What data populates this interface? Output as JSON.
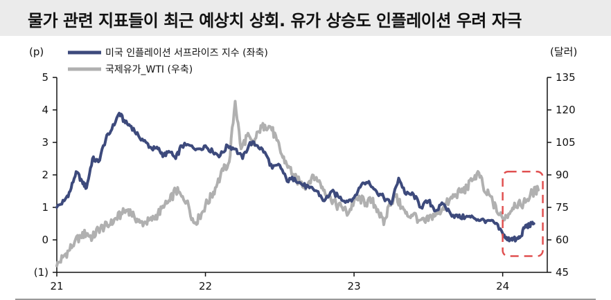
{
  "title": "물가 관련 지표들이 최근 예상치 상회. 유가 상승도 인플레이션 우려 자극",
  "chart_data": {
    "type": "line",
    "title": "물가 관련 지표들이 최근 예상치 상회. 유가 상승도 인플레이션 우려 자극",
    "left_axis": {
      "unit": "(p)",
      "ticks": [
        "5",
        "4",
        "3",
        "2",
        "1",
        "0",
        "(1)"
      ],
      "ylim": [
        -1,
        5
      ]
    },
    "right_axis": {
      "unit": "(달러)",
      "ticks": [
        "135",
        "120",
        "105",
        "90",
        "75",
        "60",
        "45"
      ],
      "ylim": [
        45,
        135
      ]
    },
    "x_ticks": [
      "21",
      "22",
      "23",
      "24"
    ],
    "xlim": [
      2021.0,
      2024.3
    ],
    "highlight": {
      "x_range": [
        2024.0,
        2024.27
      ],
      "y_range_left": [
        -0.5,
        2.1
      ],
      "color": "#e05050",
      "style": "dashed"
    },
    "series": [
      {
        "name": "미국 인플레이션 서프라이즈 지수 (좌축)",
        "axis": "left",
        "color": "#3d4a7c",
        "x": [
          2021.0,
          2021.05,
          2021.09,
          2021.13,
          2021.17,
          2021.2,
          2021.24,
          2021.28,
          2021.33,
          2021.37,
          2021.42,
          2021.46,
          2021.5,
          2021.55,
          2021.6,
          2021.64,
          2021.68,
          2021.72,
          2021.76,
          2021.8,
          2021.84,
          2021.9,
          2021.95,
          2022.0,
          2022.05,
          2022.1,
          2022.15,
          2022.2,
          2022.25,
          2022.3,
          2022.35,
          2022.4,
          2022.45,
          2022.5,
          2022.55,
          2022.6,
          2022.65,
          2022.7,
          2022.75,
          2022.8,
          2022.85,
          2022.9,
          2022.95,
          2023.0,
          2023.05,
          2023.1,
          2023.15,
          2023.2,
          2023.25,
          2023.3,
          2023.35,
          2023.4,
          2023.45,
          2023.5,
          2023.55,
          2023.6,
          2023.65,
          2023.7,
          2023.75,
          2023.8,
          2023.85,
          2023.9,
          2023.95,
          2024.0,
          2024.03,
          2024.06,
          2024.09,
          2024.12,
          2024.15,
          2024.18,
          2024.21
        ],
        "values": [
          1.0,
          1.2,
          1.5,
          2.1,
          1.8,
          1.6,
          2.5,
          2.4,
          3.1,
          3.4,
          3.9,
          3.6,
          3.5,
          3.2,
          3.0,
          2.8,
          2.8,
          2.6,
          2.7,
          2.5,
          2.9,
          2.9,
          2.8,
          2.9,
          2.7,
          2.6,
          2.9,
          2.8,
          2.5,
          3.0,
          2.9,
          2.7,
          2.2,
          2.3,
          1.8,
          1.9,
          1.7,
          1.6,
          1.5,
          1.2,
          1.5,
          1.3,
          1.2,
          1.3,
          1.7,
          1.8,
          1.5,
          1.3,
          1.1,
          1.9,
          1.4,
          1.4,
          1.0,
          1.2,
          0.9,
          1.1,
          0.8,
          0.7,
          0.7,
          0.7,
          0.6,
          0.6,
          0.5,
          0.2,
          0.0,
          0.05,
          0.0,
          0.1,
          0.4,
          0.45,
          0.5
        ]
      },
      {
        "name": "국제유가_WTI (우축)",
        "axis": "right",
        "color": "#b0b0b0",
        "x": [
          2021.0,
          2021.04,
          2021.08,
          2021.12,
          2021.16,
          2021.2,
          2021.24,
          2021.28,
          2021.32,
          2021.36,
          2021.4,
          2021.44,
          2021.48,
          2021.52,
          2021.56,
          2021.6,
          2021.64,
          2021.68,
          2021.72,
          2021.76,
          2021.8,
          2021.84,
          2021.88,
          2021.92,
          2021.96,
          2022.0,
          2022.04,
          2022.08,
          2022.12,
          2022.16,
          2022.2,
          2022.24,
          2022.28,
          2022.32,
          2022.36,
          2022.4,
          2022.44,
          2022.48,
          2022.52,
          2022.56,
          2022.6,
          2022.64,
          2022.68,
          2022.72,
          2022.76,
          2022.8,
          2022.84,
          2022.88,
          2022.92,
          2022.96,
          2023.0,
          2023.04,
          2023.08,
          2023.12,
          2023.16,
          2023.2,
          2023.24,
          2023.28,
          2023.32,
          2023.36,
          2023.4,
          2023.44,
          2023.48,
          2023.52,
          2023.56,
          2023.6,
          2023.64,
          2023.68,
          2023.72,
          2023.76,
          2023.8,
          2023.84,
          2023.88,
          2023.92,
          2023.96,
          2024.0,
          2024.04,
          2024.08,
          2024.12,
          2024.16,
          2024.2,
          2024.24
        ],
        "values": [
          48,
          52,
          55,
          59,
          62,
          63,
          61,
          65,
          66,
          67,
          70,
          72,
          74,
          71,
          68,
          68,
          69,
          72,
          75,
          78,
          83,
          80,
          78,
          68,
          70,
          76,
          80,
          86,
          92,
          96,
          124,
          102,
          108,
          104,
          110,
          113,
          112,
          106,
          98,
          94,
          89,
          86,
          85,
          90,
          87,
          83,
          80,
          76,
          75,
          72,
          78,
          79,
          77,
          78,
          74,
          67,
          77,
          80,
          75,
          71,
          72,
          69,
          68,
          71,
          72,
          75,
          78,
          81,
          82,
          84,
          88,
          91,
          82,
          80,
          73,
          70,
          72,
          77,
          76,
          78,
          82,
          83
        ]
      }
    ]
  }
}
